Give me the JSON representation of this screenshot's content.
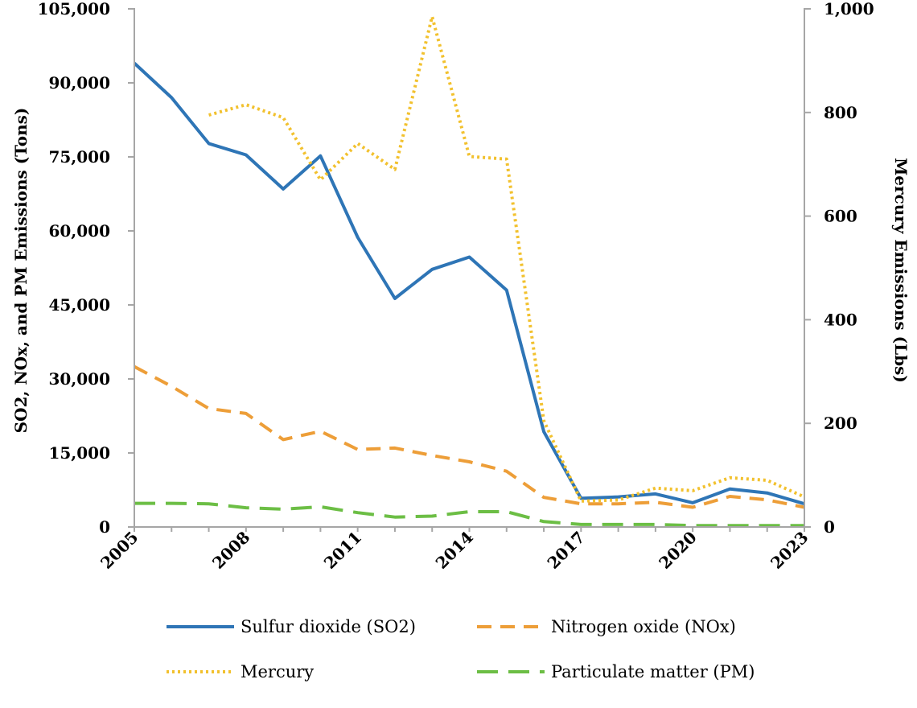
{
  "chart_data": {
    "type": "line",
    "title": "",
    "x": [
      2005,
      2006,
      2007,
      2008,
      2009,
      2010,
      2011,
      2012,
      2013,
      2014,
      2015,
      2016,
      2017,
      2018,
      2019,
      2020,
      2021,
      2022,
      2023
    ],
    "x_tick_labels": [
      "2005",
      "2008",
      "2011",
      "2014",
      "2017",
      "2020",
      "2023"
    ],
    "xlim": [
      2005,
      2023
    ],
    "ylabel_left": "SO2, NOx, and PM Emissions (Tons)",
    "ylim_left": [
      0,
      105000
    ],
    "y_ticks_left": [
      "0",
      "15,000",
      "30,000",
      "45,000",
      "60,000",
      "75,000",
      "90,000",
      "105,000"
    ],
    "ylabel_right": "Mercury Emissions (Lbs)",
    "ylim_right": [
      0,
      1000
    ],
    "y_ticks_right": [
      "0",
      "200",
      "400",
      "600",
      "800",
      "1,000"
    ],
    "legend_position": "bottom",
    "series": [
      {
        "name": "Sulfur dioxide (SO2)",
        "axis": "left",
        "style": "solid",
        "color": "#2E75B6",
        "values": [
          94000,
          87000,
          77700,
          75400,
          68500,
          75200,
          58700,
          46300,
          52200,
          54700,
          48000,
          19300,
          5800,
          6100,
          6700,
          4900,
          7700,
          6900,
          4700
        ]
      },
      {
        "name": "Nitrogen oxide (NOx)",
        "axis": "left",
        "style": "dashed",
        "color": "#ED9E38",
        "values": [
          32500,
          28500,
          24000,
          23000,
          17700,
          19400,
          15700,
          16000,
          14500,
          13200,
          11300,
          6000,
          4700,
          4700,
          5000,
          4000,
          6200,
          5500,
          4000
        ]
      },
      {
        "name": "Mercury",
        "axis": "right",
        "style": "dotted",
        "color": "#F2C12E",
        "values": [
          null,
          null,
          795,
          815,
          790,
          670,
          740,
          690,
          985,
          715,
          710,
          205,
          50,
          52,
          75,
          70,
          95,
          90,
          58
        ]
      },
      {
        "name": "Particulate matter (PM)",
        "axis": "left",
        "style": "longdash",
        "color": "#6CBE45",
        "values": [
          4800,
          4800,
          4700,
          3900,
          3600,
          4100,
          2900,
          2000,
          2200,
          3100,
          3100,
          1100,
          500,
          500,
          500,
          300,
          300,
          300,
          300
        ]
      }
    ]
  }
}
